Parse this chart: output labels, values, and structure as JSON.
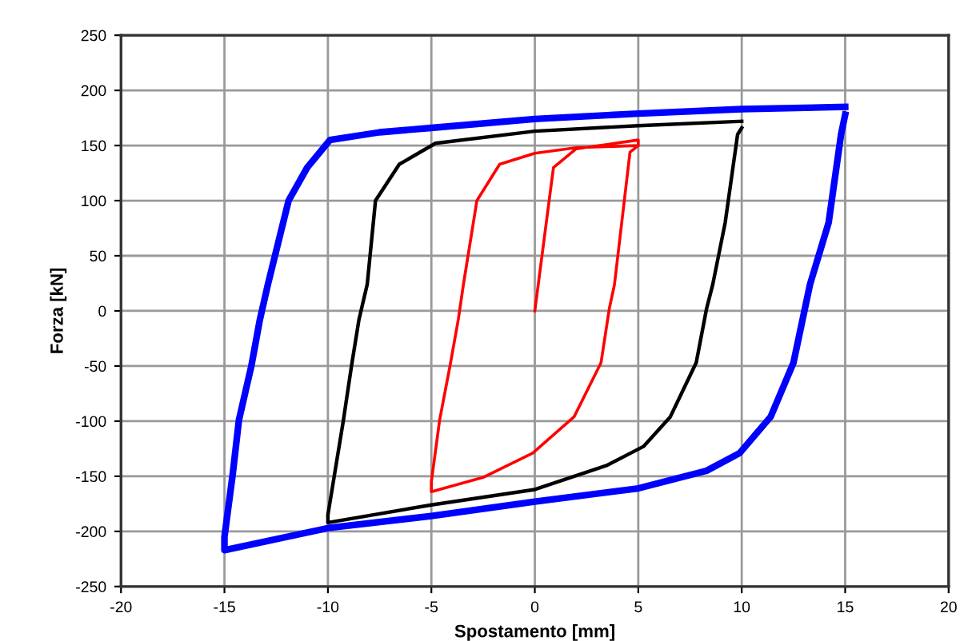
{
  "chart_data": {
    "type": "line",
    "xlabel": "Spostamento [mm]",
    "ylabel": "Forza [kN]",
    "xlim": [
      -20,
      20
    ],
    "xticks": [
      -20,
      -15,
      -10,
      -5,
      0,
      5,
      10,
      15,
      20
    ],
    "ylim": [
      -250,
      250
    ],
    "yticks": [
      -250,
      -200,
      -150,
      -100,
      -50,
      0,
      50,
      100,
      150,
      200,
      250
    ],
    "grid": true,
    "marker": "none",
    "line_style": "solid",
    "series": [
      {
        "color": "#0000ff",
        "x": [
          15,
          14.8,
          14.2,
          13.3,
          12.5,
          11.4,
          9.9,
          8.3,
          5,
          0,
          -5,
          -10,
          -15,
          -15,
          -14.6,
          -14.3,
          -13.7,
          -13.3,
          -12.9,
          -11.9,
          -11,
          -9.9,
          -7.5,
          -5,
          0,
          5,
          10,
          15
        ],
        "values": [
          178,
          160,
          80,
          24,
          -47,
          -96,
          -129,
          -145,
          -161,
          -173,
          -186,
          -197,
          -217,
          -205,
          -148,
          -99,
          -50,
          -9,
          24,
          100,
          130,
          155,
          162,
          166,
          174,
          179,
          183,
          185
        ]
      },
      {
        "color": "#000000",
        "x": [
          10,
          9.8,
          9.2,
          8.6,
          8.3,
          7.8,
          6.55,
          5.25,
          3.5,
          0,
          -5,
          -10,
          -10,
          -9.25,
          -8.86,
          -8.5,
          -8.1,
          -7.7,
          -6.55,
          -4.8,
          0,
          5,
          10
        ],
        "values": [
          166,
          160,
          80,
          24,
          2,
          -47,
          -96,
          -123,
          -140,
          -162,
          -176,
          -192,
          -185,
          -99,
          -50,
          -8,
          24,
          100,
          133,
          152,
          163,
          168,
          172
        ]
      },
      {
        "color": "#ff0000",
        "x": [
          0,
          0.9,
          2,
          5,
          5,
          4.6,
          4.2,
          3.85,
          3.6,
          3.2,
          1.9,
          -0.1,
          -2.5,
          -5,
          -5,
          -4.6,
          -4.1,
          -3.7,
          -3.45,
          -2.8,
          -1.7,
          0,
          2,
          5
        ],
        "values": [
          0,
          130,
          147,
          155,
          150,
          144,
          80,
          24,
          2,
          -47,
          -96,
          -129,
          -151,
          -164,
          -155,
          -99,
          -50,
          -8,
          24,
          100,
          133,
          143,
          148,
          150
        ]
      }
    ]
  }
}
